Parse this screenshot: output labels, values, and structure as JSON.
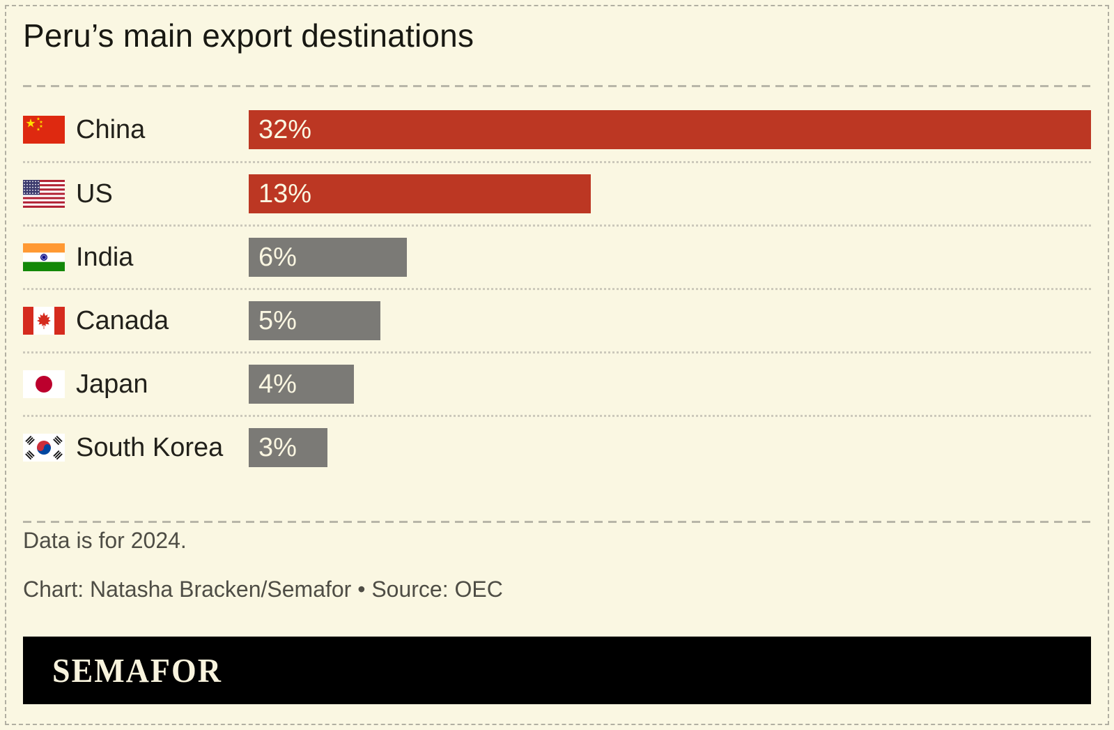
{
  "title": "Peru’s main export destinations",
  "chart_data": {
    "type": "bar",
    "orientation": "horizontal",
    "title": "Peru’s main export destinations",
    "unit": "%",
    "xmax": 32,
    "grid": false,
    "legend": false,
    "categories": [
      "China",
      "US",
      "India",
      "Canada",
      "Japan",
      "South Korea"
    ],
    "values": [
      32,
      13,
      6,
      5,
      4,
      3
    ],
    "rows": [
      {
        "label": "China",
        "value": 32,
        "display": "32%",
        "flag": "china",
        "emphasis": true
      },
      {
        "label": "US",
        "value": 13,
        "display": "13%",
        "flag": "us",
        "emphasis": true
      },
      {
        "label": "India",
        "value": 6,
        "display": "6%",
        "flag": "india",
        "emphasis": false
      },
      {
        "label": "Canada",
        "value": 5,
        "display": "5%",
        "flag": "canada",
        "emphasis": false
      },
      {
        "label": "Japan",
        "value": 4,
        "display": "4%",
        "flag": "japan",
        "emphasis": false
      },
      {
        "label": "South Korea",
        "value": 3,
        "display": "3%",
        "flag": "south-korea",
        "emphasis": false
      }
    ]
  },
  "footnote": "Data is for 2024.",
  "credit": "Chart: Natasha Bracken/Semafor • Source: OEC",
  "logo_text": "SEMAFOR",
  "colors": {
    "background": "#faf7e2",
    "bar_highlight": "#bc3723",
    "bar_muted": "#7b7a76",
    "bar_text": "#faf6e1",
    "title_text": "#181812",
    "label_text": "#22211b",
    "note_text": "#4e4d45",
    "logo_bg": "#000000",
    "logo_text": "#f8f3dd"
  }
}
